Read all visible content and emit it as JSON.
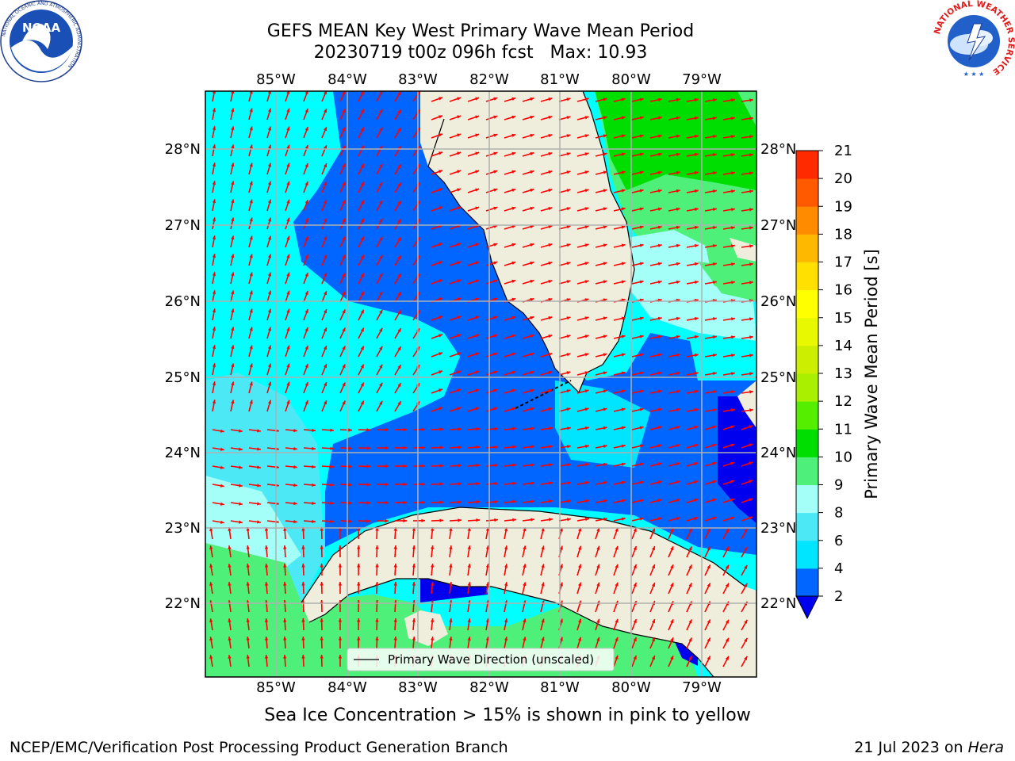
{
  "title": {
    "line1": "GEFS MEAN Key West Primary Wave Mean Period",
    "line2": "20230719 t00z 096h fcst   Max: 10.93"
  },
  "logos": {
    "noaa_text": "NOAA",
    "noaa_ring_top": "NATIONAL OCEANIC AND ATMOSPHERIC ADMINISTRATION",
    "noaa_ring_bottom": "U.S. DEPARTMENT OF COMMERCE",
    "nws_ring": "NATIONAL WEATHER SERVICE"
  },
  "map": {
    "lon_labels": [
      "85°W",
      "84°W",
      "83°W",
      "82°W",
      "81°W",
      "80°W",
      "79°W"
    ],
    "lat_labels": [
      "28°N",
      "27°N",
      "26°N",
      "25°N",
      "24°N",
      "23°N",
      "22°N"
    ],
    "lon_range": [
      -86.0,
      -78.3
    ],
    "lat_range": [
      21.1,
      28.75
    ],
    "legend_label": "Primary Wave Direction (unscaled)",
    "arrow_color": "#ff0000",
    "land_color": "#efeedc"
  },
  "colorbar": {
    "label": "Primary Wave Mean Period [s]",
    "ticks": [
      "2",
      "4",
      "6",
      "8",
      "9",
      "10",
      "11",
      "12",
      "13",
      "14",
      "15",
      "16",
      "17",
      "18",
      "19",
      "20",
      "21"
    ],
    "colors": [
      "#0066ff",
      "#00e5ff",
      "#4de8f5",
      "#a3fff7",
      "#4ff07a",
      "#00dd00",
      "#55ee00",
      "#aaee00",
      "#ccee00",
      "#e8f800",
      "#ffff00",
      "#ffe000",
      "#ffb800",
      "#ff8c00",
      "#ff5a00",
      "#ff2a00"
    ],
    "under_color": "#0000ee"
  },
  "notes": {
    "ice": "Sea Ice Concentration > 15% is shown in pink to yellow",
    "footer_left": "NCEP/EMC/Verification Post Processing Product Generation Branch",
    "footer_date": "21 Jul 2023 on ",
    "footer_machine": "Hera"
  }
}
